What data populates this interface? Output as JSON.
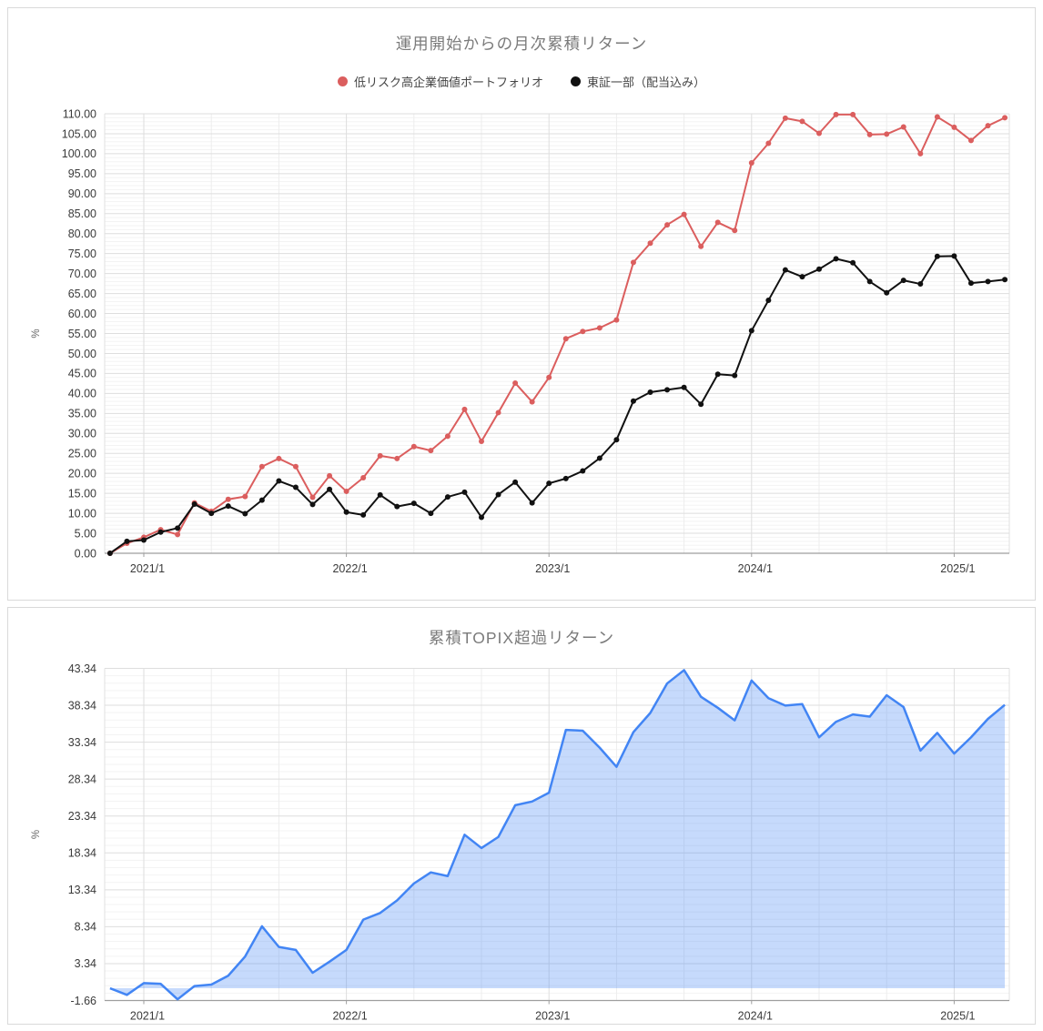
{
  "colors": {
    "portfolio_red": "#db5e5e",
    "benchmark_black": "#111111",
    "excess_line_blue": "#4285f4",
    "excess_fill_blue": "rgba(66,133,244,0.30)",
    "grid_major": "#dedede",
    "grid_minor": "#f3f3f3",
    "axis_line": "#9e9e9e",
    "plot_side_line": "#e0e0e0",
    "tick_text": "#3a3a3a",
    "title_text": "#7b7b7b",
    "ylabel_text": "#666666"
  },
  "chart_data": [
    {
      "type": "line",
      "title": "運用開始からの月次累積リターン",
      "ylabel": "%",
      "y_min": 0,
      "y_max": 110,
      "y_step": 5,
      "y_ticks": [
        "0.00",
        "5.00",
        "10.00",
        "15.00",
        "20.00",
        "25.00",
        "30.00",
        "35.00",
        "40.00",
        "45.00",
        "50.00",
        "55.00",
        "60.00",
        "65.00",
        "70.00",
        "75.00",
        "80.00",
        "85.00",
        "90.00",
        "95.00",
        "100.00",
        "105.00",
        "110.00"
      ],
      "x": [
        "2020/11",
        "2020/12",
        "2021/1",
        "2021/2",
        "2021/3",
        "2021/4",
        "2021/5",
        "2021/6",
        "2021/7",
        "2021/8",
        "2021/9",
        "2021/10",
        "2021/11",
        "2021/12",
        "2022/1",
        "2022/2",
        "2022/3",
        "2022/4",
        "2022/5",
        "2022/6",
        "2022/7",
        "2022/8",
        "2022/9",
        "2022/10",
        "2022/11",
        "2022/12",
        "2023/1",
        "2023/2",
        "2023/3",
        "2023/4",
        "2023/5",
        "2023/6",
        "2023/7",
        "2023/8",
        "2023/9",
        "2023/10",
        "2023/11",
        "2023/12",
        "2024/1",
        "2024/2",
        "2024/3",
        "2024/4",
        "2024/5",
        "2024/6",
        "2024/7",
        "2024/8",
        "2024/9",
        "2024/10",
        "2024/11",
        "2024/12",
        "2025/1",
        "2025/2",
        "2025/3",
        "2025/4"
      ],
      "x_tick_labels": [
        "2021/1",
        "2022/1",
        "2023/1",
        "2024/1",
        "2025/1"
      ],
      "x_tick_indices": [
        2,
        14,
        26,
        38,
        50
      ],
      "legend_position": "top-center",
      "grid": true,
      "series": [
        {
          "name": "低リスク高企業価値ポートフォリオ",
          "color": "#db5e5e",
          "values": [
            0.0,
            2.5,
            4.0,
            5.9,
            4.7,
            12.6,
            10.5,
            13.5,
            14.2,
            21.7,
            23.7,
            21.7,
            14.0,
            19.4,
            15.5,
            18.9,
            24.4,
            23.7,
            26.7,
            25.7,
            29.3,
            36.0,
            28.0,
            35.2,
            42.6,
            37.9,
            44.0,
            53.7,
            55.5,
            56.4,
            58.4,
            72.8,
            77.6,
            82.2,
            84.8,
            76.8,
            82.8,
            80.8,
            97.7,
            102.6,
            108.9,
            108.1,
            105.1,
            109.8,
            109.8,
            104.8,
            104.9,
            106.7,
            100.0,
            109.2,
            106.6,
            103.3,
            107.0,
            109.0
          ]
        },
        {
          "name": "東証一部（配当込み）",
          "color": "#111111",
          "values": [
            0.0,
            3.0,
            3.3,
            5.3,
            6.3,
            12.3,
            10.0,
            11.8,
            9.9,
            13.3,
            18.1,
            16.5,
            12.2,
            16.0,
            10.3,
            9.6,
            14.6,
            11.7,
            12.5,
            10.0,
            14.1,
            15.3,
            9.0,
            14.7,
            17.8,
            12.6,
            17.5,
            18.7,
            20.6,
            23.8,
            28.4,
            38.1,
            40.3,
            40.9,
            41.5,
            37.3,
            44.8,
            44.5,
            55.7,
            63.3,
            70.9,
            69.2,
            71.1,
            73.7,
            72.7,
            68.0,
            65.2,
            68.3,
            67.4,
            74.3,
            74.4,
            67.6,
            68.0,
            68.5
          ]
        }
      ]
    },
    {
      "type": "area",
      "title": "累積TOPIX超過リターン",
      "ylabel": "%",
      "y_min": -1.66,
      "y_max": 43.34,
      "y_step": 5,
      "y_ticks": [
        "-1.66",
        "3.34",
        "8.34",
        "13.34",
        "18.34",
        "23.34",
        "28.34",
        "33.34",
        "38.34",
        "43.34"
      ],
      "x": [
        "2020/11",
        "2020/12",
        "2021/1",
        "2021/2",
        "2021/3",
        "2021/4",
        "2021/5",
        "2021/6",
        "2021/7",
        "2021/8",
        "2021/9",
        "2021/10",
        "2021/11",
        "2021/12",
        "2022/1",
        "2022/2",
        "2022/3",
        "2022/4",
        "2022/5",
        "2022/6",
        "2022/7",
        "2022/8",
        "2022/9",
        "2022/10",
        "2022/11",
        "2022/12",
        "2023/1",
        "2023/2",
        "2023/3",
        "2023/4",
        "2023/5",
        "2023/6",
        "2023/7",
        "2023/8",
        "2023/9",
        "2023/10",
        "2023/11",
        "2023/12",
        "2024/1",
        "2024/2",
        "2024/3",
        "2024/4",
        "2024/5",
        "2024/6",
        "2024/7",
        "2024/8",
        "2024/9",
        "2024/10",
        "2024/11",
        "2024/12",
        "2025/1",
        "2025/2",
        "2025/3",
        "2025/4"
      ],
      "x_tick_labels": [
        "2021/1",
        "2022/1",
        "2023/1",
        "2024/1",
        "2025/1"
      ],
      "x_tick_indices": [
        2,
        14,
        26,
        38,
        50
      ],
      "grid": true,
      "fill_baseline": 0,
      "series": [
        {
          "name": "累積TOPIX超過リターン",
          "line_color": "#4285f4",
          "fill_color": "rgba(66,133,244,0.30)",
          "values": [
            0.0,
            -0.9,
            0.7,
            0.6,
            -1.5,
            0.3,
            0.5,
            1.7,
            4.3,
            8.4,
            5.6,
            5.2,
            2.1,
            3.6,
            5.2,
            9.3,
            10.2,
            11.9,
            14.2,
            15.7,
            15.2,
            20.8,
            19.0,
            20.5,
            24.8,
            25.3,
            26.5,
            35.0,
            34.9,
            32.6,
            30.0,
            34.7,
            37.3,
            41.3,
            43.1,
            39.5,
            38.0,
            36.3,
            41.7,
            39.3,
            38.3,
            38.5,
            34.0,
            36.1,
            37.1,
            36.8,
            39.7,
            38.1,
            32.2,
            34.6,
            31.8,
            34.0,
            36.5,
            38.4
          ]
        }
      ]
    }
  ]
}
